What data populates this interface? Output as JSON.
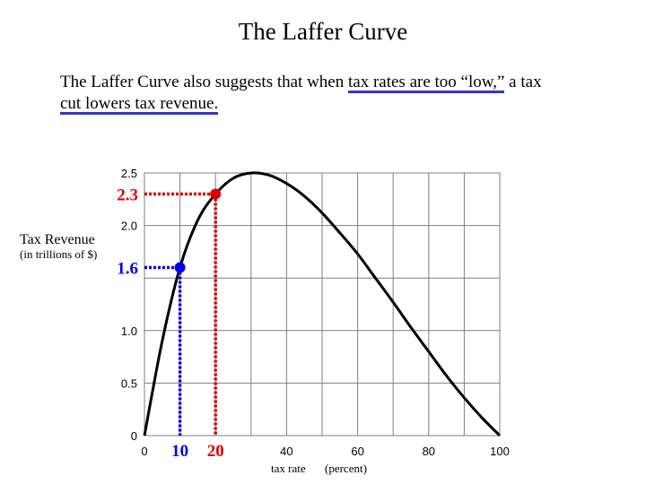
{
  "title": "The Laffer Curve",
  "caption": {
    "before": "The Laffer Curve also suggests that when ",
    "underlined_1": "tax rates are too “low,”",
    "middle": " a tax",
    "underlined_2": "cut lowers tax revenue.",
    "underline_color": "#3333cc"
  },
  "chart_data": {
    "type": "line",
    "ylabel": "Tax Revenue",
    "ylabel_sub": "(in trillions of $)",
    "xlabel": "tax rate",
    "xlabel_sub": "(percent)",
    "x_ticks": [
      "0",
      "40",
      "60",
      "80",
      "100"
    ],
    "y_ticks": [
      "0",
      "0.5",
      "1.0",
      "2.0",
      "2.5"
    ],
    "xlim": [
      0,
      100
    ],
    "ylim": [
      0,
      2.5
    ],
    "grid": true,
    "series": [
      {
        "x": [
          0,
          5,
          10,
          15,
          20,
          25,
          30,
          35,
          40,
          45,
          50,
          55,
          60,
          65,
          70,
          75,
          80,
          85,
          90,
          95,
          100
        ],
        "y": [
          0,
          0.9,
          1.6,
          2.05,
          2.3,
          2.45,
          2.5,
          2.48,
          2.4,
          2.28,
          2.12,
          1.93,
          1.73,
          1.5,
          1.27,
          1.03,
          0.8,
          0.57,
          0.36,
          0.17,
          0
        ],
        "color": "#000000"
      }
    ],
    "highlights": [
      {
        "x": 10,
        "y": 1.6,
        "x_label": "10",
        "y_label": "1.6",
        "color": "#0000ee"
      },
      {
        "x": 20,
        "y": 2.3,
        "x_label": "20",
        "y_label": "2.3",
        "color": "#dd0000"
      }
    ]
  }
}
